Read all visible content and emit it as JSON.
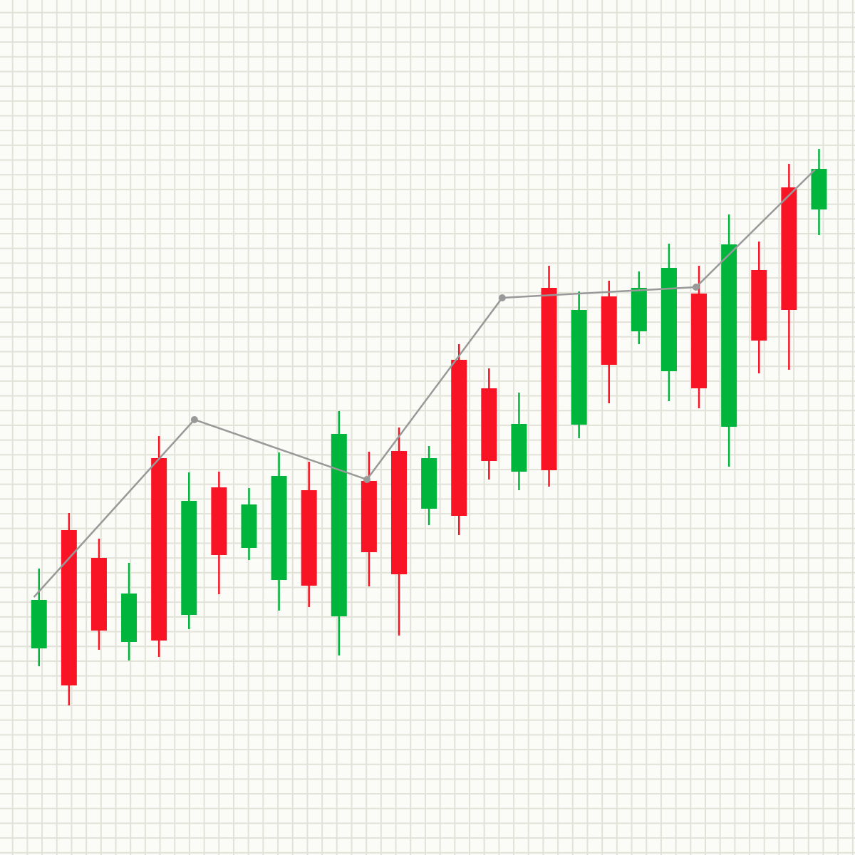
{
  "chart_data": {
    "type": "candlestick",
    "x": [
      null,
      null,
      null,
      null,
      null,
      null,
      null,
      null,
      null,
      null,
      null,
      null,
      null,
      null,
      null,
      null,
      null,
      null,
      null,
      null,
      null,
      null,
      null,
      null,
      null,
      null,
      null
    ],
    "open": [
      290,
      456,
      417,
      299,
      557,
      337,
      516,
      431,
      386,
      512,
      335,
      525,
      567,
      486,
      695,
      655,
      538,
      796,
      604,
      784,
      735,
      679,
      788,
      601,
      821,
      937,
      906
    ],
    "high": [
      402,
      480,
      444,
      410,
      588,
      537,
      538,
      515,
      565,
      552,
      623,
      566,
      600,
      574,
      717,
      683,
      649,
      827,
      791,
      806,
      819,
      858,
      827,
      899,
      861,
      970,
      991
    ],
    "low": [
      265,
      210,
      288,
      273,
      278,
      317,
      366,
      414,
      343,
      348,
      280,
      377,
      308,
      463,
      449,
      527,
      512,
      517,
      585,
      634,
      717,
      637,
      627,
      545,
      676,
      681,
      870
    ],
    "close": [
      358,
      238,
      315,
      367,
      301,
      497,
      421,
      492,
      532,
      378,
      591,
      425,
      394,
      557,
      476,
      553,
      605,
      540,
      765,
      688,
      796,
      824,
      655,
      857,
      722,
      765,
      963
    ],
    "up_color": "#00b53c",
    "down_color": "#f81424",
    "overlay": {
      "type": "line",
      "color": "#999999",
      "x": [
        -0.17,
        5.18,
        10.93,
        15.44,
        21.9,
        25.87
      ],
      "values": [
        362,
        611,
        527,
        782,
        797,
        962
      ]
    },
    "xlim": [
      -1.3,
      27.2
    ],
    "ylim": [
      0,
      1200
    ],
    "grid": true
  }
}
